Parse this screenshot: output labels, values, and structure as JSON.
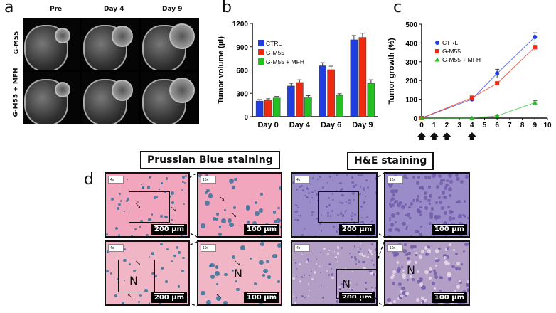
{
  "panel_a": {
    "label": "a",
    "columns": [
      "Pre",
      "Day 4",
      "Day 9"
    ],
    "rows": [
      "G-M55",
      "G-M55 + MFH"
    ]
  },
  "panel_d": {
    "label": "d",
    "prussian_title": "Prussian Blue staining",
    "he_title": "H&E staining",
    "mag_low": "4x",
    "mag_high": "10x",
    "scale_low": "200 µm",
    "scale_high": "100 µm",
    "necrosis": "N"
  },
  "chart_data": [
    {
      "panel": "b",
      "type": "bar",
      "categories": [
        "Day 0",
        "Day 4",
        "Day 6",
        "Day 9"
      ],
      "ylabel": "Tumor volume (µl)",
      "ylim": [
        0,
        1200
      ],
      "yticks": [
        0,
        300,
        600,
        900,
        1200
      ],
      "legend": "top-left",
      "series": [
        {
          "name": "CTRL",
          "color": "#1f3de0",
          "values": [
            200,
            395,
            655,
            990
          ],
          "errors": [
            20,
            35,
            40,
            55
          ]
        },
        {
          "name": "G-M55",
          "color": "#f02a10",
          "values": [
            215,
            440,
            605,
            1020
          ],
          "errors": [
            15,
            35,
            45,
            55
          ]
        },
        {
          "name": "G-M55 + MFH",
          "color": "#22c020",
          "values": [
            240,
            250,
            275,
            430
          ],
          "errors": [
            20,
            20,
            20,
            45
          ]
        }
      ]
    },
    {
      "panel": "c",
      "type": "line",
      "x": [
        0,
        4,
        6,
        9
      ],
      "ylabel": "Tumor growth (%)",
      "xlim": [
        0,
        10
      ],
      "ylim": [
        0,
        500
      ],
      "xticks": [
        0,
        1,
        2,
        3,
        4,
        5,
        6,
        7,
        8,
        9,
        10
      ],
      "yticks": [
        0,
        100,
        200,
        300,
        400,
        500
      ],
      "legend": "top-left",
      "treatment_arrows_at": [
        0,
        1,
        2,
        4
      ],
      "series": [
        {
          "name": "CTRL",
          "color": "#1f3de0",
          "marker": "circle",
          "values": [
            0,
            100,
            238,
            432
          ],
          "errors": [
            0,
            8,
            22,
            22
          ]
        },
        {
          "name": "G-M55",
          "color": "#f02a10",
          "marker": "square",
          "values": [
            0,
            108,
            185,
            378
          ],
          "errors": [
            0,
            10,
            8,
            22
          ]
        },
        {
          "name": "G-M55 + MFH",
          "color": "#22c020",
          "marker": "triangle",
          "values": [
            0,
            0,
            12,
            82
          ],
          "errors": [
            0,
            0,
            3,
            10
          ]
        }
      ]
    }
  ]
}
